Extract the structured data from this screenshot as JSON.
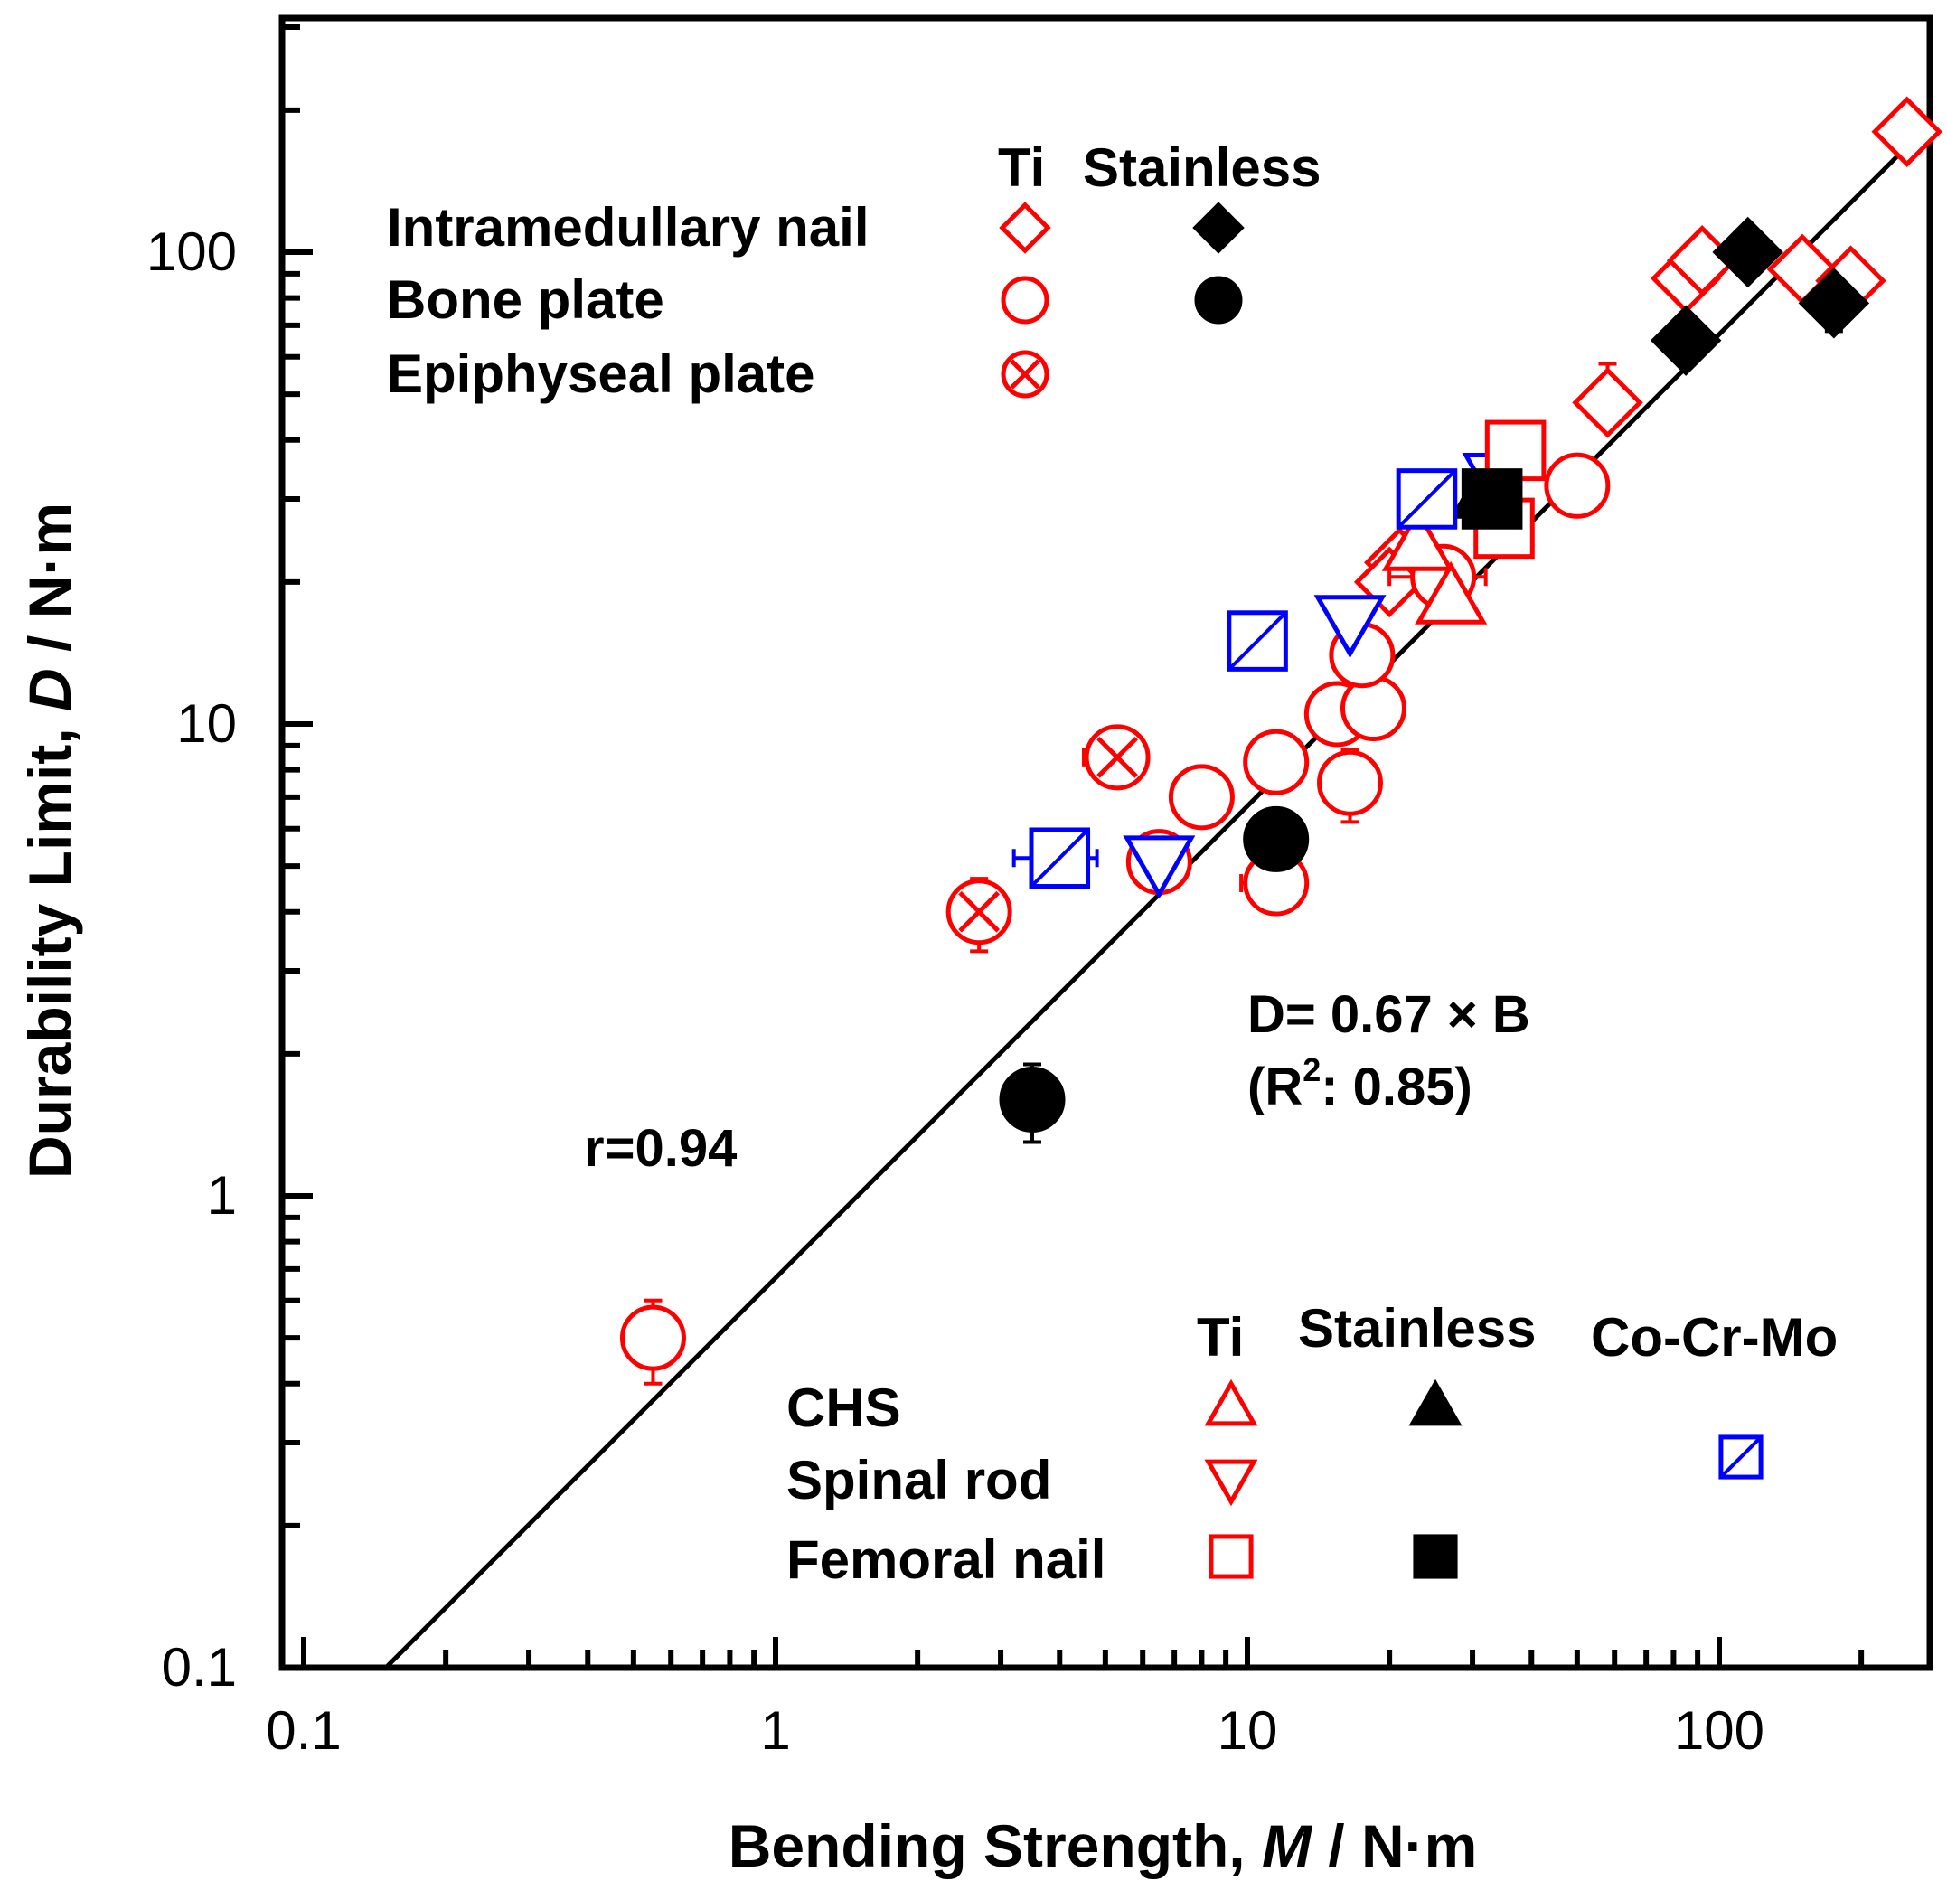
{
  "chart_data": {
    "type": "scatter",
    "x_scale": "log",
    "y_scale": "log",
    "xlim": [
      0.1,
      300
    ],
    "ylim": [
      0.1,
      300
    ],
    "xlabel": {
      "prefix": "Bending Strength, ",
      "var": "M",
      "unit": " / N·m"
    },
    "ylabel": {
      "prefix": "Durability Limit, ",
      "var": "D",
      "unit": " / N·m"
    },
    "x_ticks": [
      {
        "value": 0.1,
        "label": "0.1"
      },
      {
        "value": 1,
        "label": "1"
      },
      {
        "value": 10,
        "label": "10"
      },
      {
        "value": 100,
        "label": "100"
      }
    ],
    "y_ticks": [
      {
        "value": 0.1,
        "label": "0.1"
      },
      {
        "value": 1,
        "label": "1"
      },
      {
        "value": 10,
        "label": "10"
      },
      {
        "value": 100,
        "label": "100"
      }
    ],
    "fit_line": {
      "slope": 0.67,
      "x_range": [
        0.149,
        270
      ]
    },
    "annotations": {
      "equation": "D= 0.67 × B",
      "r2_open": "(R",
      "r2_sup": "2",
      "r2_close": ": 0.85)",
      "r": "r=0.94"
    },
    "legend_top": {
      "header_ti": "Ti",
      "header_stainless": "Stainless",
      "rows": [
        {
          "label": "Intramedullary nail",
          "ti_marker": "diamond",
          "st_marker": "diamond"
        },
        {
          "label": "Bone plate",
          "ti_marker": "circle",
          "st_marker": "circle"
        },
        {
          "label": "Epiphyseal plate",
          "ti_marker": "circle-x",
          "st_marker": null
        }
      ]
    },
    "legend_bottom": {
      "header_ti": "Ti",
      "header_stainless": "Stainless",
      "header_cocrmo": "Co-Cr-Mo",
      "rows": [
        {
          "label": "CHS",
          "ti_marker": "triangle-up",
          "st_marker": "triangle-up",
          "co_marker": null
        },
        {
          "label": "Spinal rod",
          "ti_marker": "triangle-down",
          "st_marker": null,
          "co_marker": null
        },
        {
          "label": "Femoral nail",
          "ti_marker": "square",
          "st_marker": "square",
          "co_marker": "square-slash"
        }
      ]
    },
    "colors": {
      "ti": "#ff0000",
      "stainless": "#000000",
      "cocrmo": "#0000ff"
    },
    "series": [
      {
        "name": "Intramedullary nail (Ti)",
        "marker": "diamond",
        "color": "#ff0000",
        "filled": false,
        "points": [
          {
            "x": 250,
            "y": 180
          },
          {
            "x": 85,
            "y": 88
          },
          {
            "x": 92,
            "y": 96
          },
          {
            "x": 150,
            "y": 92
          },
          {
            "x": 190,
            "y": 87,
            "xerr": 20
          },
          {
            "x": 58,
            "y": 48,
            "yerr_up": 10
          },
          {
            "x": 21,
            "y": 22
          },
          {
            "x": 20,
            "y": 20
          }
        ]
      },
      {
        "name": "Intramedullary nail (Stainless)",
        "marker": "diamond",
        "color": "#000000",
        "filled": true,
        "points": [
          {
            "x": 115,
            "y": 100,
            "yerr_down": 10
          },
          {
            "x": 85,
            "y": 65,
            "yerr_down": 6
          },
          {
            "x": 175,
            "y": 78,
            "yerr_down": 10
          }
        ]
      },
      {
        "name": "Bone plate (Ti)",
        "marker": "circle",
        "color": "#ff0000",
        "filled": false,
        "points": [
          {
            "x": 0.55,
            "y": 0.5,
            "yerr": 0.1
          },
          {
            "x": 6.5,
            "y": 5.1,
            "xerr": 0.8
          },
          {
            "x": 8.0,
            "y": 7.0
          },
          {
            "x": 11.5,
            "y": 4.6,
            "xerr": 1.8
          },
          {
            "x": 11.5,
            "y": 8.3
          },
          {
            "x": 16.5,
            "y": 7.5,
            "yerr": 1.3
          },
          {
            "x": 15.5,
            "y": 10.5
          },
          {
            "x": 18.5,
            "y": 10.8
          },
          {
            "x": 17.5,
            "y": 14
          },
          {
            "x": 26,
            "y": 20.5,
            "xerr": 6
          },
          {
            "x": 50,
            "y": 32
          }
        ]
      },
      {
        "name": "Bone plate (Stainless)",
        "marker": "circle",
        "color": "#000000",
        "filled": true,
        "points": [
          {
            "x": 3.5,
            "y": 1.6,
            "yerr": 0.3
          },
          {
            "x": 11.5,
            "y": 5.7
          }
        ]
      },
      {
        "name": "Epiphyseal plate (Ti)",
        "marker": "circle-x",
        "color": "#ff0000",
        "filled": false,
        "points": [
          {
            "x": 2.7,
            "y": 4.0,
            "yerr": 0.7
          },
          {
            "x": 5.3,
            "y": 8.5,
            "xerr": 0.8
          }
        ]
      },
      {
        "name": "CHS (Ti)",
        "marker": "triangle-up",
        "color": "#ff0000",
        "filled": false,
        "points": [
          {
            "x": 27,
            "y": 18.5
          },
          {
            "x": 23,
            "y": 24
          }
        ]
      },
      {
        "name": "CHS (Stainless)",
        "marker": "triangle-up",
        "color": "#000000",
        "filled": true,
        "points": [
          {
            "x": 32,
            "y": 31
          }
        ]
      },
      {
        "name": "Spinal rod (Ti)",
        "marker": "triangle-down",
        "color": "#0000ff",
        "filled": false,
        "points": [
          {
            "x": 6.5,
            "y": 5.1
          },
          {
            "x": 16.5,
            "y": 16.5
          },
          {
            "x": 34,
            "y": 33
          }
        ]
      },
      {
        "name": "Femoral nail (Ti)",
        "marker": "square",
        "color": "#ff0000",
        "filled": false,
        "points": [
          {
            "x": 37,
            "y": 38,
            "yerr_up": 5
          },
          {
            "x": 35,
            "y": 26
          }
        ]
      },
      {
        "name": "Femoral nail (Stainless)",
        "marker": "square",
        "color": "#000000",
        "filled": true,
        "points": [
          {
            "x": 33,
            "y": 30
          }
        ]
      },
      {
        "name": "Co-Cr-Mo",
        "marker": "square-slash",
        "color": "#0000ff",
        "filled": false,
        "points": [
          {
            "x": 4.0,
            "y": 5.2,
            "xerr": 0.8
          },
          {
            "x": 10.5,
            "y": 15
          },
          {
            "x": 24,
            "y": 30
          }
        ]
      }
    ]
  }
}
